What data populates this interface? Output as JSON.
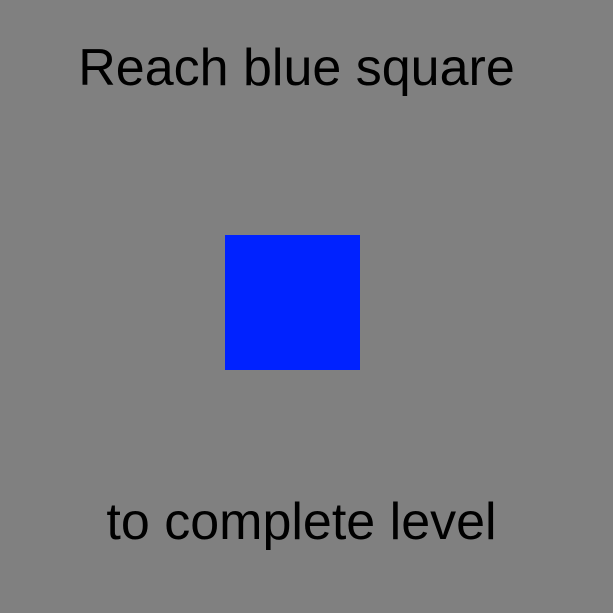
{
  "instructions": {
    "line1": "Reach blue square",
    "line2": "to complete level"
  },
  "goal": {
    "name": "blue-square",
    "color": "#0022ff"
  },
  "colors": {
    "background": "#808080",
    "text": "#000000"
  }
}
